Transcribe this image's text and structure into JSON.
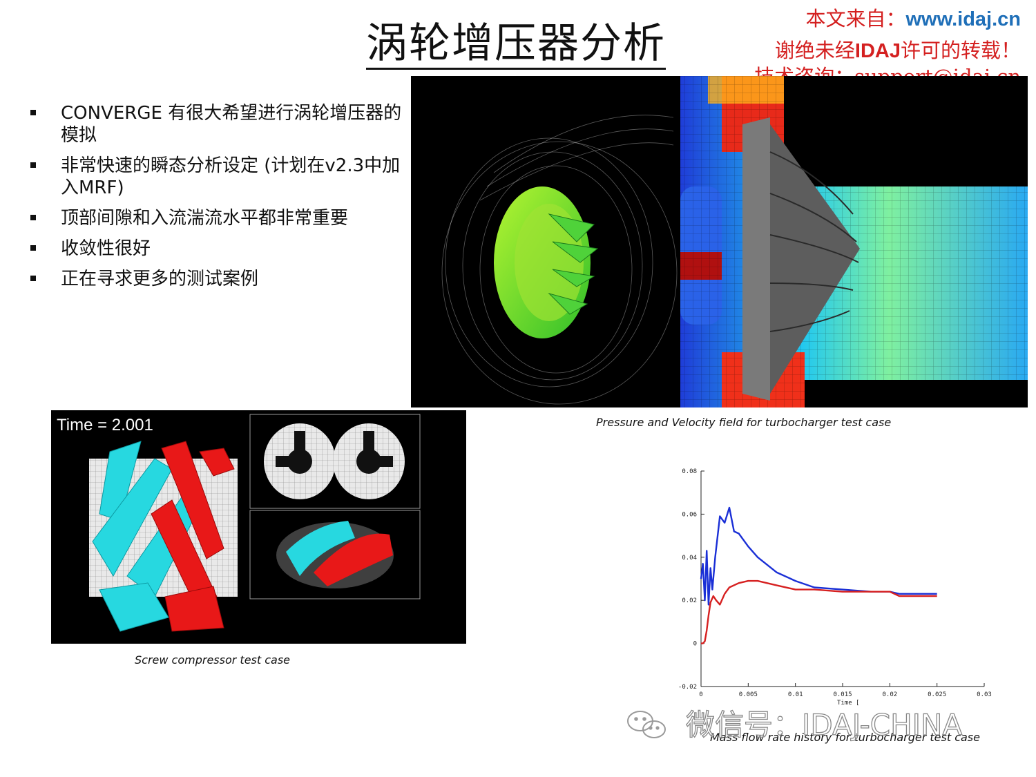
{
  "slide": {
    "title": "涡轮增压器分析",
    "source_notice": {
      "line1_prefix": "本文来自：",
      "line1_site": "www.idaj.cn",
      "line2_prefix": "谢绝未经",
      "line2_brand": "IDAJ",
      "line2_suffix": "许可的转载！",
      "line3": "技术咨询：support@idaj.cn"
    },
    "bullets": [
      "CONVERGE 有很大希望进行涡轮增压器的模拟",
      "非常快速的瞬态分析设定 (计划在v2.3中加入MRF)",
      "顶部间隙和入流湍流水平都非常重要",
      "收敛性很好",
      "正在寻求更多的测试案例"
    ],
    "screw_time_label": "Time = 2.001",
    "captions": {
      "main": "Pressure and Velocity field for turbocharger test case",
      "screw": "Screw compressor test case",
      "mass": "Mass flow rate history for turbocharger test case"
    },
    "watermark": "微信号：IDAJ-CHINA"
  },
  "chart_data": {
    "type": "line",
    "title": "",
    "xlabel": "Time [",
    "ylabel": "",
    "xlim": [
      0,
      0.03
    ],
    "ylim": [
      -0.02,
      0.08
    ],
    "x_ticks": [
      "0",
      "0.005",
      "0.01",
      "0.015",
      "0.02",
      "0.025",
      "0.03"
    ],
    "y_ticks": [
      "-0.02",
      "0",
      "0.02",
      "0.04",
      "0.06",
      "0.08"
    ],
    "grid": false,
    "series": [
      {
        "color": "#1a2fd6",
        "x": [
          0,
          0.0002,
          0.0004,
          0.0006,
          0.0008,
          0.001,
          0.0012,
          0.0015,
          0.002,
          0.0025,
          0.003,
          0.0035,
          0.004,
          0.005,
          0.006,
          0.008,
          0.01,
          0.012,
          0.015,
          0.018,
          0.02,
          0.021,
          0.022,
          0.025
        ],
        "y": [
          0.03,
          0.037,
          0.02,
          0.043,
          0.018,
          0.035,
          0.025,
          0.04,
          0.059,
          0.056,
          0.063,
          0.052,
          0.051,
          0.045,
          0.04,
          0.033,
          0.029,
          0.026,
          0.025,
          0.024,
          0.024,
          0.023,
          0.023,
          0.023
        ]
      },
      {
        "color": "#d62020",
        "x": [
          0,
          0.0002,
          0.0004,
          0.0006,
          0.0008,
          0.001,
          0.0013,
          0.0016,
          0.002,
          0.0025,
          0.003,
          0.004,
          0.005,
          0.006,
          0.008,
          0.01,
          0.012,
          0.015,
          0.018,
          0.02,
          0.021,
          0.022,
          0.025
        ],
        "y": [
          0,
          0,
          0.001,
          0.006,
          0.013,
          0.019,
          0.022,
          0.02,
          0.018,
          0.023,
          0.026,
          0.028,
          0.029,
          0.029,
          0.027,
          0.025,
          0.025,
          0.024,
          0.024,
          0.024,
          0.022,
          0.022,
          0.022
        ]
      }
    ]
  }
}
